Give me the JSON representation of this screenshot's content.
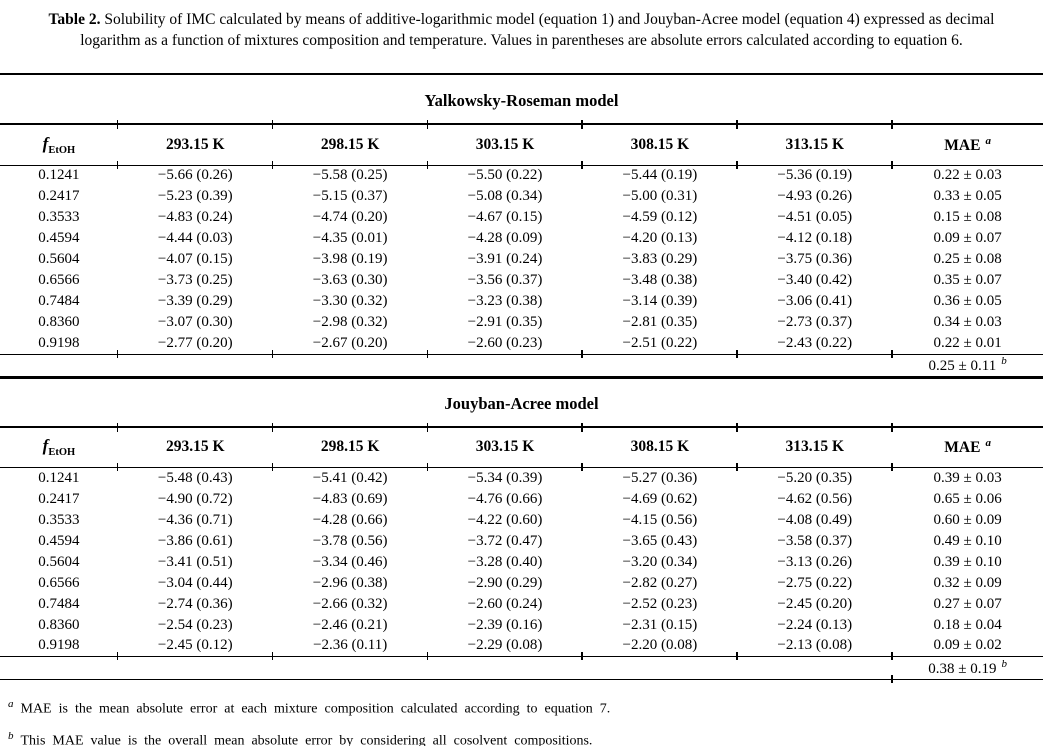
{
  "caption": {
    "label": "Table 2.",
    "text": "Solubility of IMC calculated by means of additive-logarithmic model (equation 1) and Jouyban-Acree model (equation 4) expressed as decimal logarithm as a function of mixtures composition and temperature. Values in parentheses are absolute errors calculated according to equation 6."
  },
  "header": {
    "f_symbol": "f",
    "f_subscript": "EtOH",
    "temps": [
      "293.15 K",
      "298.15 K",
      "303.15 K",
      "308.15 K",
      "313.15 K"
    ],
    "mae_label": "MAE",
    "mae_superscript": "a"
  },
  "tables": [
    {
      "title": "Yalkowsky-Roseman model",
      "rows": [
        [
          "0.1241",
          "−5.66 (0.26)",
          "−5.58 (0.25)",
          "−5.50 (0.22)",
          "−5.44 (0.19)",
          "−5.36 (0.19)",
          "0.22 ± 0.03"
        ],
        [
          "0.2417",
          "−5.23 (0.39)",
          "−5.15 (0.37)",
          "−5.08 (0.34)",
          "−5.00 (0.31)",
          "−4.93 (0.26)",
          "0.33 ± 0.05"
        ],
        [
          "0.3533",
          "−4.83 (0.24)",
          "−4.74 (0.20)",
          "−4.67 (0.15)",
          "−4.59 (0.12)",
          "−4.51 (0.05)",
          "0.15 ± 0.08"
        ],
        [
          "0.4594",
          "−4.44 (0.03)",
          "−4.35 (0.01)",
          "−4.28 (0.09)",
          "−4.20 (0.13)",
          "−4.12 (0.18)",
          "0.09 ± 0.07"
        ],
        [
          "0.5604",
          "−4.07 (0.15)",
          "−3.98 (0.19)",
          "−3.91 (0.24)",
          "−3.83 (0.29)",
          "−3.75 (0.36)",
          "0.25 ± 0.08"
        ],
        [
          "0.6566",
          "−3.73 (0.25)",
          "−3.63 (0.30)",
          "−3.56 (0.37)",
          "−3.48 (0.38)",
          "−3.40 (0.42)",
          "0.35 ± 0.07"
        ],
        [
          "0.7484",
          "−3.39 (0.29)",
          "−3.30 (0.32)",
          "−3.23 (0.38)",
          "−3.14 (0.39)",
          "−3.06 (0.41)",
          "0.36 ± 0.05"
        ],
        [
          "0.8360",
          "−3.07 (0.30)",
          "−2.98 (0.32)",
          "−2.91 (0.35)",
          "−2.81 (0.35)",
          "−2.73 (0.37)",
          "0.34 ± 0.03"
        ],
        [
          "0.9198",
          "−2.77 (0.20)",
          "−2.67 (0.20)",
          "−2.60 (0.23)",
          "−2.51 (0.22)",
          "−2.43 (0.22)",
          "0.22 ± 0.01"
        ]
      ],
      "overall_mae": "0.25 ± 0.11",
      "overall_superscript": "b"
    },
    {
      "title": "Jouyban-Acree model",
      "rows": [
        [
          "0.1241",
          "−5.48 (0.43)",
          "−5.41 (0.42)",
          "−5.34 (0.39)",
          "−5.27 (0.36)",
          "−5.20 (0.35)",
          "0.39 ± 0.03"
        ],
        [
          "0.2417",
          "−4.90 (0.72)",
          "−4.83 (0.69)",
          "−4.76 (0.66)",
          "−4.69 (0.62)",
          "−4.62 (0.56)",
          "0.65 ± 0.06"
        ],
        [
          "0.3533",
          "−4.36 (0.71)",
          "−4.28 (0.66)",
          "−4.22 (0.60)",
          "−4.15 (0.56)",
          "−4.08 (0.49)",
          "0.60 ± 0.09"
        ],
        [
          "0.4594",
          "−3.86 (0.61)",
          "−3.78 (0.56)",
          "−3.72 (0.47)",
          "−3.65 (0.43)",
          "−3.58 (0.37)",
          "0.49 ± 0.10"
        ],
        [
          "0.5604",
          "−3.41 (0.51)",
          "−3.34 (0.46)",
          "−3.28 (0.40)",
          "−3.20 (0.34)",
          "−3.13 (0.26)",
          "0.39 ± 0.10"
        ],
        [
          "0.6566",
          "−3.04 (0.44)",
          "−2.96 (0.38)",
          "−2.90 (0.29)",
          "−2.82 (0.27)",
          "−2.75 (0.22)",
          "0.32 ± 0.09"
        ],
        [
          "0.7484",
          "−2.74 (0.36)",
          "−2.66 (0.32)",
          "−2.60 (0.24)",
          "−2.52 (0.23)",
          "−2.45 (0.20)",
          "0.27 ± 0.07"
        ],
        [
          "0.8360",
          "−2.54 (0.23)",
          "−2.46 (0.21)",
          "−2.39 (0.16)",
          "−2.31 (0.15)",
          "−2.24 (0.13)",
          "0.18 ± 0.04"
        ],
        [
          "0.9198",
          "−2.45 (0.12)",
          "−2.36 (0.11)",
          "−2.29 (0.08)",
          "−2.20 (0.08)",
          "−2.13 (0.08)",
          "0.09 ± 0.02"
        ]
      ],
      "overall_mae": "0.38 ± 0.19",
      "overall_superscript": "b"
    }
  ],
  "footnotes": [
    {
      "marker": "a",
      "text": "MAE is the mean absolute error at each mixture composition calculated according to equation 7."
    },
    {
      "marker": "b",
      "text": "This MAE value is the overall mean absolute error by considering all cosolvent compositions."
    }
  ]
}
